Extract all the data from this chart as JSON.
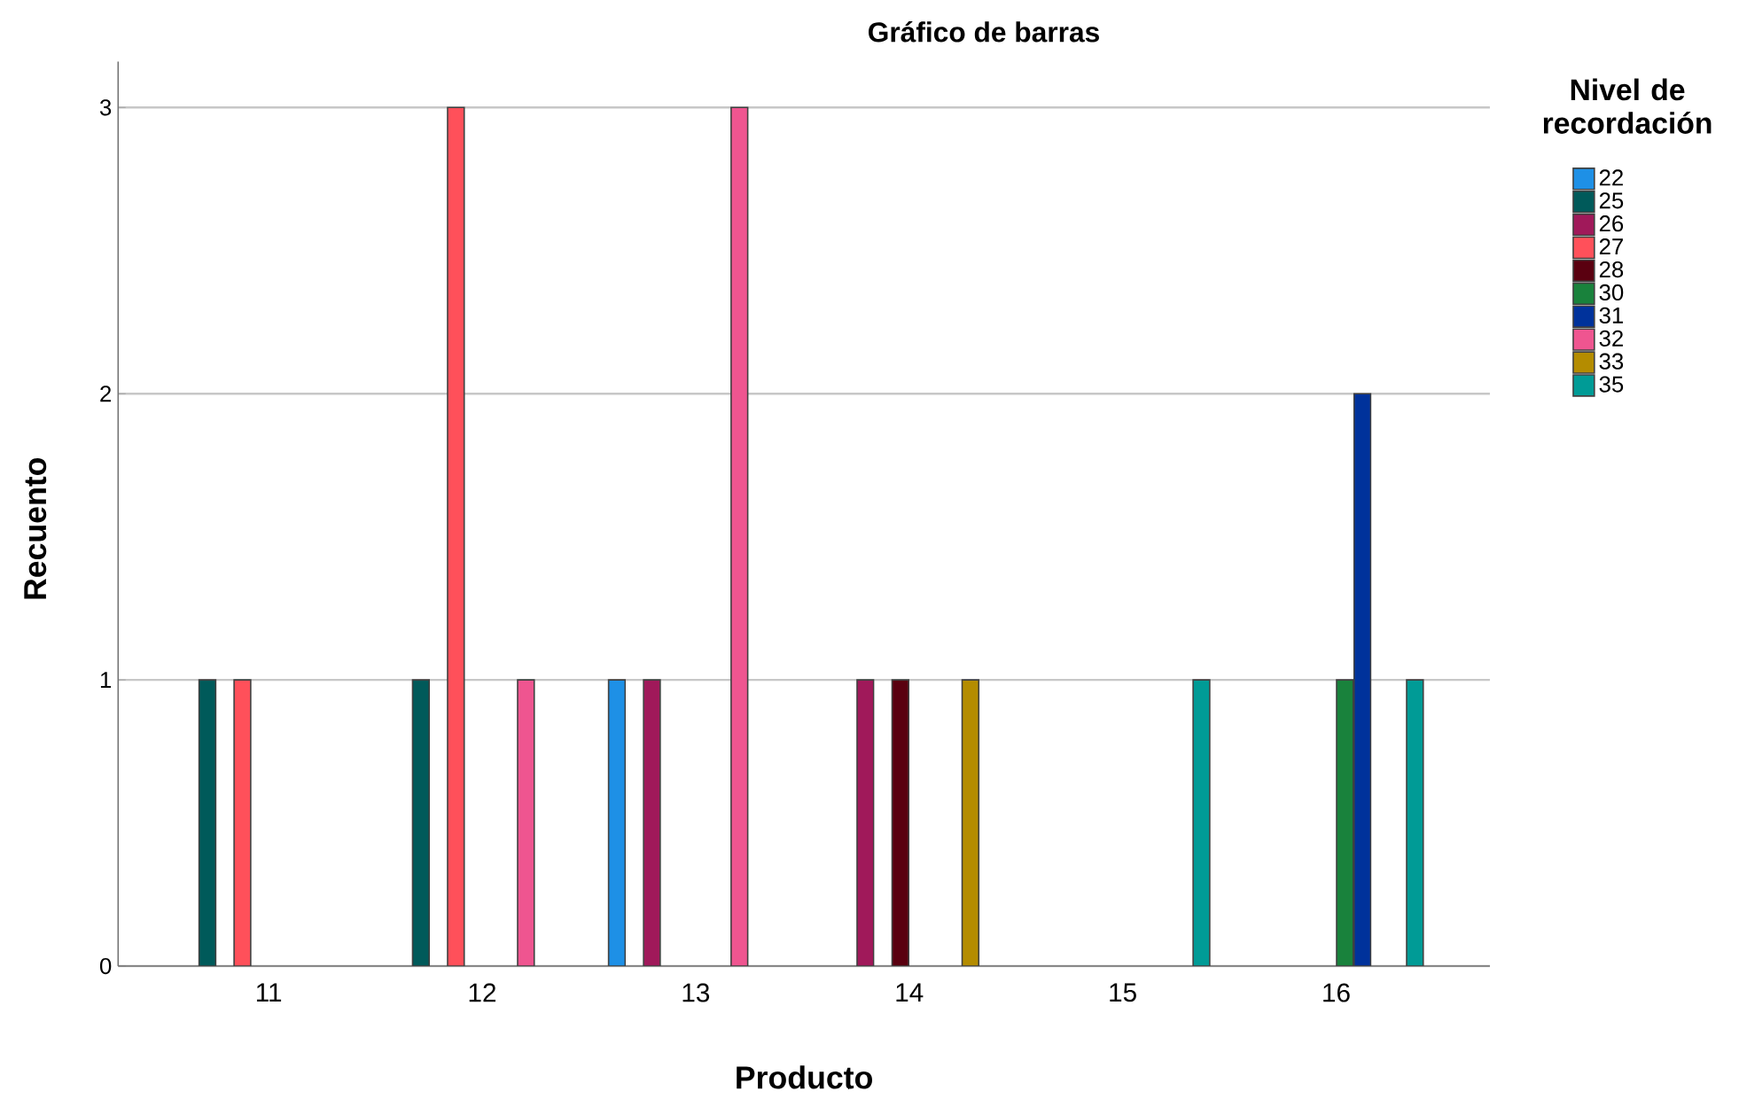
{
  "chart_data": {
    "type": "bar",
    "title": "Gráfico de barras",
    "xlabel": "Producto",
    "ylabel": "Recuento",
    "legend_title": "Nivel de recordación",
    "categories": [
      "11",
      "12",
      "13",
      "14",
      "15",
      "16"
    ],
    "series": [
      {
        "name": "22",
        "color": "#1e90e6",
        "values": [
          null,
          null,
          1,
          null,
          null,
          null
        ]
      },
      {
        "name": "25",
        "color": "#005a5a",
        "values": [
          1,
          1,
          null,
          null,
          null,
          null
        ]
      },
      {
        "name": "26",
        "color": "#a0195a",
        "values": [
          null,
          null,
          1,
          1,
          null,
          null
        ]
      },
      {
        "name": "27",
        "color": "#ff505a",
        "values": [
          1,
          3,
          null,
          null,
          null,
          null
        ]
      },
      {
        "name": "28",
        "color": "#5a0010",
        "values": [
          null,
          null,
          null,
          1,
          null,
          null
        ]
      },
      {
        "name": "30",
        "color": "#19823c",
        "values": [
          null,
          null,
          null,
          null,
          null,
          1
        ]
      },
      {
        "name": "31",
        "color": "#00329b",
        "values": [
          null,
          null,
          null,
          null,
          null,
          2
        ]
      },
      {
        "name": "32",
        "color": "#ef5590",
        "values": [
          null,
          1,
          3,
          null,
          null,
          null
        ]
      },
      {
        "name": "33",
        "color": "#b48c00",
        "values": [
          null,
          null,
          null,
          1,
          null,
          null
        ]
      },
      {
        "name": "35",
        "color": "#009b96",
        "values": [
          null,
          null,
          null,
          null,
          1,
          1
        ]
      }
    ],
    "ylim": [
      0,
      3.16
    ],
    "yticks": [
      0,
      1,
      2,
      3
    ],
    "grid": "y",
    "legend": "right"
  }
}
